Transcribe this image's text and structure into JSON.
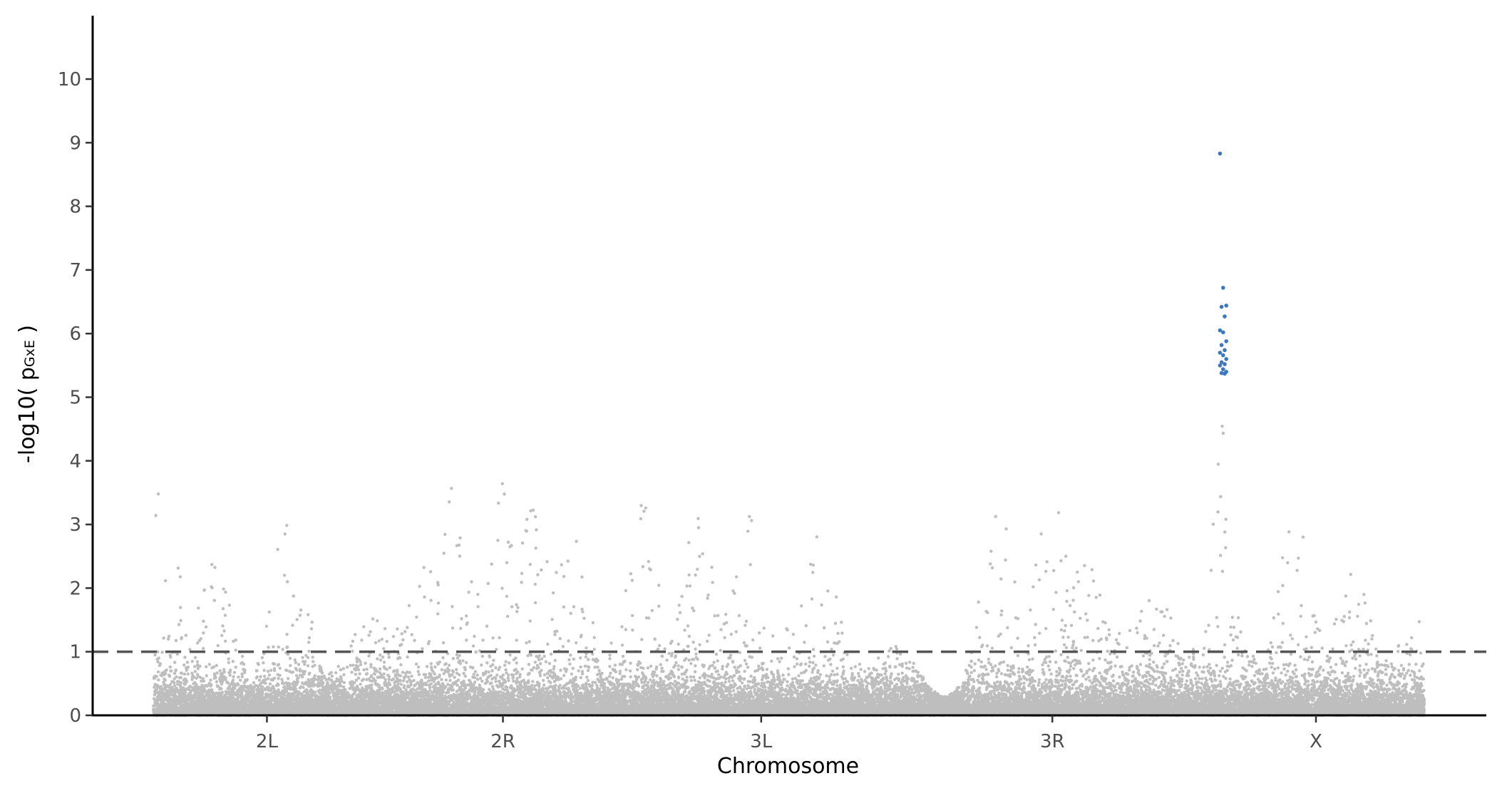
{
  "chart_data": {
    "type": "scatter",
    "subtype": "manhattan",
    "title": "",
    "xlabel": "Chromosome",
    "ylabel_parts": {
      "prefix": "-log10( p",
      "subscript": "GxE",
      "suffix": " )"
    },
    "ylim": [
      0,
      11
    ],
    "yticks": [
      0,
      1,
      2,
      3,
      4,
      5,
      6,
      7,
      8,
      9,
      10
    ],
    "threshold": 1,
    "point_color": "#bebebe",
    "highlight_color": "#3a78c2",
    "chromosomes": [
      {
        "name": "2L",
        "length_mb": 23.5
      },
      {
        "name": "2R",
        "length_mb": 25.3
      },
      {
        "name": "3L",
        "length_mb": 28.1
      },
      {
        "name": "3R",
        "length_mb": 32.1
      },
      {
        "name": "X",
        "length_mb": 22.4
      }
    ],
    "significant_hits": {
      "chromosome": "X",
      "position_mb": 1.6,
      "values": [
        8.83,
        6.72,
        6.44,
        6.42,
        6.27,
        6.05,
        6.02,
        5.88,
        5.82,
        5.74,
        5.7,
        5.66,
        5.6,
        5.55,
        5.52,
        5.5,
        5.44,
        5.4,
        5.38,
        5.37
      ]
    },
    "peaks": [
      {
        "chromosome": "2L",
        "position_mb": 0.6,
        "height": 4.2
      },
      {
        "chromosome": "2L",
        "position_mb": 6.5,
        "height": 2.6
      },
      {
        "chromosome": "2L",
        "position_mb": 14.0,
        "height": 3.2
      },
      {
        "chromosome": "2R",
        "position_mb": 4.8,
        "height": 2.9
      },
      {
        "chromosome": "2R",
        "position_mb": 7.8,
        "height": 3.7
      },
      {
        "chromosome": "2R",
        "position_mb": 12.8,
        "height": 4.07
      },
      {
        "chromosome": "2R",
        "position_mb": 15.8,
        "height": 3.35
      },
      {
        "chromosome": "2R",
        "position_mb": 19.5,
        "height": 3.2
      },
      {
        "chromosome": "3L",
        "position_mb": 1.5,
        "height": 3.45
      },
      {
        "chromosome": "3L",
        "position_mb": 7.5,
        "height": 3.3
      },
      {
        "chromosome": "3L",
        "position_mb": 13.0,
        "height": 3.4
      },
      {
        "chromosome": "3L",
        "position_mb": 20.0,
        "height": 3.1
      },
      {
        "chromosome": "3R",
        "position_mb": 10.5,
        "height": 3.2
      },
      {
        "chromosome": "3R",
        "position_mb": 16.0,
        "height": 3.4
      },
      {
        "chromosome": "3R",
        "position_mb": 19.5,
        "height": 2.6
      },
      {
        "chromosome": "3R",
        "position_mb": 26.0,
        "height": 2.0
      },
      {
        "chromosome": "X",
        "position_mb": 1.6,
        "height": 5.0
      },
      {
        "chromosome": "X",
        "position_mb": 9.0,
        "height": 3.15
      },
      {
        "chromosome": "X",
        "position_mb": 15.0,
        "height": 2.4
      }
    ]
  }
}
